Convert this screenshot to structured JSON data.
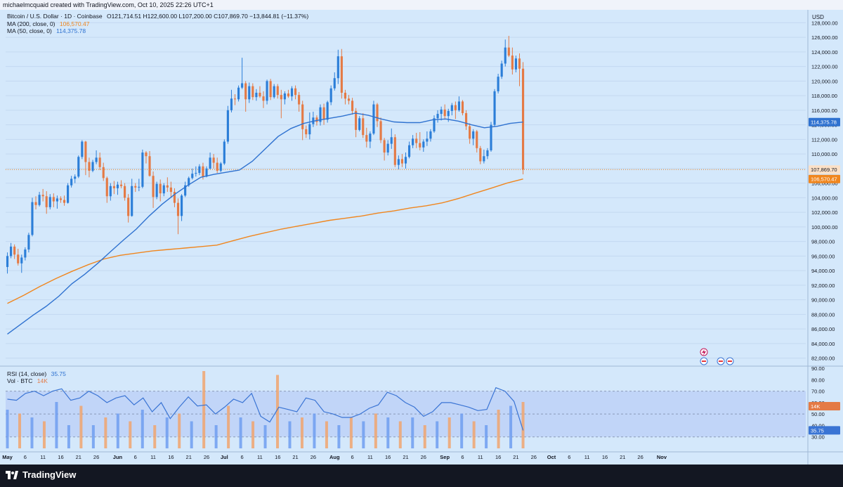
{
  "header": {
    "credit": "michaelmcquaid created with TradingView.com, Oct 10, 2025 22:26 UTC+1"
  },
  "legend": {
    "symbol": "Bitcoin / U.S. Dollar · 1D · Coinbase",
    "ohlc": "O121,714.51  H122,600.00  L107,200.00  C107,869.70  −13,844.81 (−11.37%)",
    "ma200_label": "MA (200, close, 0)",
    "ma200_value": "106,570.47",
    "ma50_label": "MA (50, close, 0)",
    "ma50_value": "114,375.78",
    "rsi_label": "RSI (14, close)",
    "rsi_value": "35.75",
    "vol_label": "Vol · BTC",
    "vol_value": "14K"
  },
  "axis": {
    "currency": "USD",
    "price_ticks": [
      "128,000.00",
      "126,000.00",
      "124,000.00",
      "122,000.00",
      "120,000.00",
      "118,000.00",
      "116,000.00",
      "114,000.00",
      "112,000.00",
      "110,000.00",
      "108,000.00",
      "106,000.00",
      "104,000.00",
      "102,000.00",
      "100,000.00",
      "98,000.00",
      "96,000.00",
      "94,000.00",
      "92,000.00",
      "90,000.00",
      "88,000.00",
      "86,000.00",
      "84,000.00",
      "82,000.00"
    ],
    "rsi_ticks": [
      "90.00",
      "80.00",
      "70.00",
      "60.00",
      "50.00",
      "40.00",
      "30.00"
    ],
    "x_ticks": [
      "May",
      "6",
      "11",
      "16",
      "21",
      "26",
      "Jun",
      "6",
      "11",
      "16",
      "21",
      "26",
      "Jul",
      "6",
      "11",
      "16",
      "21",
      "26",
      "Aug",
      "6",
      "11",
      "16",
      "21",
      "26",
      "Sep",
      "6",
      "11",
      "16",
      "21",
      "26",
      "Oct",
      "6",
      "11",
      "16",
      "21",
      "26",
      "Nov"
    ],
    "price_badges": {
      "ma50": "114,375.78",
      "close": "107,869.70",
      "ma200": "106,570.47",
      "vol": "14K",
      "rsi": "35.75"
    }
  },
  "brand": {
    "name": "TradingView"
  },
  "colors": {
    "up": "#2b7ed8",
    "down": "#e47a45",
    "ma50": "#2f72d0",
    "ma200": "#f0861e",
    "rsi": "#3a74d4",
    "vol_up": "#6f9ef0",
    "vol_down": "#f0a56f"
  },
  "chart_data": {
    "type": "candlestick",
    "symbol": "BTCUSD",
    "interval": "1D",
    "ylim": [
      81000,
      129000
    ],
    "candles": [
      [
        94500,
        96500,
        93600,
        96000
      ],
      [
        96000,
        97800,
        95700,
        97300
      ],
      [
        97300,
        97600,
        95600,
        96200
      ],
      [
        96200,
        97000,
        94700,
        95000
      ],
      [
        95000,
        96200,
        93700,
        95800
      ],
      [
        95800,
        97200,
        95400,
        96900
      ],
      [
        96900,
        99200,
        96500,
        98900
      ],
      [
        98900,
        104000,
        98700,
        103400
      ],
      [
        103400,
        104200,
        102400,
        103000
      ],
      [
        103000,
        104800,
        102800,
        104400
      ],
      [
        104400,
        105200,
        103500,
        104200
      ],
      [
        104200,
        104900,
        101800,
        102700
      ],
      [
        102700,
        104500,
        102400,
        104100
      ],
      [
        104100,
        104600,
        102700,
        103500
      ],
      [
        103500,
        104300,
        102500,
        103900
      ],
      [
        103900,
        104200,
        103300,
        103700
      ],
      [
        103700,
        104300,
        102900,
        103300
      ],
      [
        103300,
        106000,
        103200,
        105700
      ],
      [
        105700,
        107000,
        105400,
        106600
      ],
      [
        106600,
        107200,
        106000,
        106900
      ],
      [
        106900,
        109800,
        106700,
        109600
      ],
      [
        109600,
        111900,
        109300,
        111700
      ],
      [
        111700,
        111800,
        107100,
        108900
      ],
      [
        108900,
        109500,
        106800,
        107700
      ],
      [
        107700,
        109200,
        107500,
        108900
      ],
      [
        108900,
        110500,
        108600,
        109500
      ],
      [
        109500,
        110200,
        107800,
        108200
      ],
      [
        108200,
        108800,
        106300,
        106700
      ],
      [
        106700,
        106900,
        103300,
        104200
      ],
      [
        104200,
        106000,
        103600,
        105600
      ],
      [
        105600,
        106300,
        104500,
        105300
      ],
      [
        105300,
        106200,
        104400,
        105800
      ],
      [
        105800,
        106400,
        105300,
        105600
      ],
      [
        105600,
        106000,
        103600,
        104000
      ],
      [
        104000,
        104500,
        100600,
        101500
      ],
      [
        101500,
        106600,
        101400,
        105600
      ],
      [
        105600,
        106000,
        104800,
        105400
      ],
      [
        105400,
        106600,
        104900,
        105500
      ],
      [
        105500,
        110600,
        105300,
        110200
      ],
      [
        110200,
        110400,
        108700,
        109700
      ],
      [
        109700,
        110400,
        106900,
        107000
      ],
      [
        107000,
        107600,
        102600,
        104100
      ],
      [
        104100,
        106200,
        103800,
        105900
      ],
      [
        105900,
        106500,
        103500,
        104600
      ],
      [
        104600,
        106000,
        104200,
        105700
      ],
      [
        105700,
        106800,
        104800,
        105400
      ],
      [
        105400,
        106200,
        104000,
        104800
      ],
      [
        104800,
        105300,
        102700,
        103300
      ],
      [
        103300,
        103900,
        99000,
        101500
      ],
      [
        101500,
        104500,
        100800,
        104300
      ],
      [
        104300,
        106200,
        104100,
        105700
      ],
      [
        105700,
        106900,
        105500,
        106700
      ],
      [
        106700,
        108000,
        106500,
        107300
      ],
      [
        107300,
        108300,
        106900,
        107400
      ],
      [
        107400,
        108600,
        107100,
        108300
      ],
      [
        108300,
        108800,
        106500,
        106900
      ],
      [
        106900,
        108300,
        106800,
        108000
      ],
      [
        108000,
        110200,
        107900,
        109500
      ],
      [
        109500,
        110000,
        108000,
        108800
      ],
      [
        108800,
        109500,
        107400,
        107700
      ],
      [
        107700,
        108900,
        107500,
        108700
      ],
      [
        108700,
        112000,
        108500,
        111700
      ],
      [
        111700,
        116600,
        111400,
        116000
      ],
      [
        116000,
        118800,
        115700,
        117600
      ],
      [
        117600,
        118200,
        116700,
        117500
      ],
      [
        117500,
        119400,
        117200,
        119100
      ],
      [
        119100,
        123200,
        118900,
        119700
      ],
      [
        119700,
        120000,
        115800,
        117500
      ],
      [
        117500,
        119800,
        117000,
        119300
      ],
      [
        119300,
        119700,
        117400,
        117800
      ],
      [
        117800,
        118900,
        117300,
        118400
      ],
      [
        118400,
        119300,
        117700,
        117900
      ],
      [
        117900,
        118600,
        116300,
        117300
      ],
      [
        117300,
        120200,
        116800,
        120000
      ],
      [
        120000,
        120300,
        117400,
        117800
      ],
      [
        117800,
        119600,
        117600,
        119300
      ],
      [
        119300,
        119600,
        117600,
        118100
      ],
      [
        118100,
        118800,
        114900,
        117500
      ],
      [
        117500,
        118600,
        116800,
        118300
      ],
      [
        118300,
        118800,
        117700,
        117900
      ],
      [
        117900,
        119300,
        117300,
        119000
      ],
      [
        119000,
        119400,
        117500,
        118100
      ],
      [
        118100,
        118500,
        115800,
        116800
      ],
      [
        116800,
        117300,
        111900,
        113400
      ],
      [
        113400,
        113900,
        112200,
        112700
      ],
      [
        112700,
        115700,
        112000,
        114100
      ],
      [
        114100,
        115800,
        113700,
        115000
      ],
      [
        115000,
        115300,
        113900,
        114400
      ],
      [
        114400,
        116800,
        113900,
        116400
      ],
      [
        116400,
        116900,
        114000,
        114700
      ],
      [
        114700,
        117300,
        114300,
        117100
      ],
      [
        117100,
        119400,
        116700,
        119000
      ],
      [
        119000,
        121200,
        118700,
        120400
      ],
      [
        120400,
        124300,
        119600,
        123400
      ],
      [
        123400,
        124400,
        117600,
        118400
      ],
      [
        118400,
        118800,
        116800,
        117600
      ],
      [
        117600,
        118100,
        116800,
        117300
      ],
      [
        117300,
        117700,
        115400,
        115900
      ],
      [
        115900,
        116300,
        112300,
        113300
      ],
      [
        113300,
        115200,
        113100,
        114900
      ],
      [
        114900,
        115600,
        112200,
        112600
      ],
      [
        112600,
        113600,
        110900,
        111700
      ],
      [
        111700,
        113100,
        110800,
        112800
      ],
      [
        112800,
        117300,
        112600,
        116800
      ],
      [
        116800,
        117000,
        113700,
        114500
      ],
      [
        114500,
        115000,
        111500,
        111900
      ],
      [
        111900,
        112200,
        109100,
        110200
      ],
      [
        110200,
        111900,
        109800,
        111400
      ],
      [
        111400,
        113500,
        110700,
        112300
      ],
      [
        112300,
        112700,
        108200,
        108500
      ],
      [
        108500,
        109800,
        107900,
        109300
      ],
      [
        109300,
        110000,
        108200,
        108700
      ],
      [
        108700,
        110200,
        108000,
        109600
      ],
      [
        109600,
        111700,
        109400,
        111200
      ],
      [
        111200,
        112600,
        110800,
        112100
      ],
      [
        112100,
        112900,
        110800,
        111500
      ],
      [
        111500,
        113000,
        110500,
        110900
      ],
      [
        110900,
        112000,
        110300,
        111700
      ],
      [
        111700,
        113100,
        111100,
        112100
      ],
      [
        112100,
        113400,
        111700,
        113100
      ],
      [
        113100,
        115300,
        112900,
        114900
      ],
      [
        114900,
        116000,
        114300,
        115500
      ],
      [
        115500,
        116500,
        114600,
        116100
      ],
      [
        116100,
        116800,
        114700,
        115200
      ],
      [
        115200,
        116200,
        114400,
        115900
      ],
      [
        115900,
        117000,
        115300,
        116700
      ],
      [
        116700,
        117200,
        114800,
        116000
      ],
      [
        116000,
        117900,
        115800,
        117200
      ],
      [
        117200,
        117400,
        115300,
        115600
      ],
      [
        115600,
        116000,
        113300,
        113800
      ],
      [
        113800,
        114200,
        111400,
        112100
      ],
      [
        112100,
        113400,
        111200,
        113100
      ],
      [
        113100,
        113300,
        110200,
        110800
      ],
      [
        110800,
        111100,
        108600,
        109000
      ],
      [
        109000,
        110600,
        108700,
        109700
      ],
      [
        109700,
        110800,
        109300,
        110500
      ],
      [
        110500,
        114400,
        110300,
        114000
      ],
      [
        114000,
        118900,
        113800,
        118600
      ],
      [
        118600,
        121000,
        118300,
        120600
      ],
      [
        120600,
        122800,
        120300,
        122400
      ],
      [
        122400,
        125700,
        122000,
        124600
      ],
      [
        124600,
        126200,
        123300,
        123500
      ],
      [
        123500,
        124600,
        120900,
        121600
      ],
      [
        121600,
        123500,
        121200,
        123100
      ],
      [
        123100,
        123800,
        119300,
        121700
      ],
      [
        121700,
        122600,
        107200,
        107870
      ]
    ],
    "ma50": [
      85300,
      86600,
      87900,
      89100,
      90500,
      92200,
      93500,
      95000,
      96600,
      98200,
      99700,
      101500,
      103100,
      104500,
      105700,
      106800,
      107200,
      107500,
      107800,
      109000,
      110700,
      112400,
      113500,
      114200,
      114600,
      114900,
      115200,
      115600,
      115300,
      114800,
      114400,
      114300,
      114300,
      114700,
      114800,
      114500,
      114000,
      113600,
      113800,
      114200,
      114375
    ],
    "ma200": [
      89500,
      90600,
      91800,
      92900,
      93900,
      94800,
      95600,
      96100,
      96400,
      96700,
      96900,
      97100,
      97300,
      97500,
      98100,
      98700,
      99200,
      99700,
      100100,
      100500,
      100900,
      101200,
      101500,
      101900,
      102200,
      102600,
      102900,
      103300,
      103900,
      104600,
      105300,
      106000,
      106570
    ],
    "rsi": [
      63,
      62,
      68,
      70,
      66,
      70,
      72,
      62,
      64,
      70,
      66,
      60,
      64,
      66,
      58,
      64,
      52,
      60,
      46,
      56,
      65,
      57,
      58,
      50,
      56,
      63,
      60,
      68,
      48,
      43,
      56,
      54,
      52,
      64,
      62,
      52,
      50,
      47,
      47,
      50,
      55,
      58,
      69,
      66,
      60,
      56,
      48,
      52,
      60,
      60,
      58,
      56,
      53,
      54,
      73,
      70,
      61,
      35.75
    ],
    "volume": [
      {
        "up": true,
        "v": 0.5
      },
      {
        "up": false,
        "v": 0.45
      },
      {
        "up": true,
        "v": 0.4
      },
      {
        "up": false,
        "v": 0.35
      },
      {
        "up": true,
        "v": 0.6
      },
      {
        "up": true,
        "v": 0.3
      },
      {
        "up": false,
        "v": 0.55
      },
      {
        "up": true,
        "v": 0.3
      },
      {
        "up": false,
        "v": 0.4
      },
      {
        "up": true,
        "v": 0.45
      },
      {
        "up": false,
        "v": 0.35
      },
      {
        "up": true,
        "v": 0.5
      },
      {
        "up": false,
        "v": 0.3
      },
      {
        "up": true,
        "v": 0.4
      },
      {
        "up": false,
        "v": 0.45
      },
      {
        "up": true,
        "v": 0.35
      },
      {
        "up": false,
        "v": 1.0
      },
      {
        "up": true,
        "v": 0.3
      },
      {
        "up": false,
        "v": 0.55
      },
      {
        "up": true,
        "v": 0.4
      },
      {
        "up": false,
        "v": 0.35
      },
      {
        "up": true,
        "v": 0.3
      },
      {
        "up": false,
        "v": 0.95
      },
      {
        "up": true,
        "v": 0.35
      },
      {
        "up": false,
        "v": 0.4
      },
      {
        "up": true,
        "v": 0.45
      },
      {
        "up": false,
        "v": 0.35
      },
      {
        "up": true,
        "v": 0.3
      },
      {
        "up": false,
        "v": 0.4
      },
      {
        "up": true,
        "v": 0.35
      },
      {
        "up": false,
        "v": 0.45
      },
      {
        "up": true,
        "v": 0.4
      },
      {
        "up": false,
        "v": 0.35
      },
      {
        "up": true,
        "v": 0.4
      },
      {
        "up": false,
        "v": 0.3
      },
      {
        "up": true,
        "v": 0.35
      },
      {
        "up": false,
        "v": 0.4
      },
      {
        "up": true,
        "v": 0.45
      },
      {
        "up": false,
        "v": 0.35
      },
      {
        "up": true,
        "v": 0.3
      },
      {
        "up": false,
        "v": 0.5
      },
      {
        "up": true,
        "v": 0.55
      },
      {
        "up": false,
        "v": 0.6
      }
    ]
  }
}
